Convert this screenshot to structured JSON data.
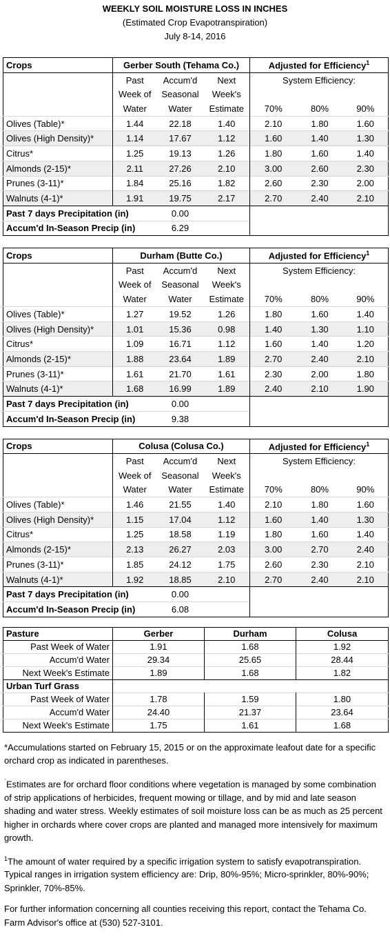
{
  "header": {
    "title": "WEEKLY SOIL MOISTURE LOSS IN INCHES",
    "subtitle": "(Estimated Crop Evapotranspiration)",
    "date": "July 8-14, 2016"
  },
  "tables": [
    {
      "crops_label": "Crops",
      "region": "Gerber South (Tehama Co.)",
      "adjusted_label": "Adjusted for Efficiency",
      "footnote_mark": "1",
      "efficiency_label": "System Efficiency:",
      "column_headers": [
        [
          "Past",
          "Week of",
          "Water"
        ],
        [
          "Accum'd",
          "Seasonal",
          "Water"
        ],
        [
          "Next",
          "Week's",
          "Estimate"
        ]
      ],
      "efficiency_columns": [
        "70%",
        "80%",
        "90%"
      ],
      "rows": [
        [
          "Olives (Table)*",
          "1.44",
          "22.18",
          "1.40",
          "2.10",
          "1.80",
          "1.60"
        ],
        [
          "Olives (High Density)*",
          "1.14",
          "17.67",
          "1.12",
          "1.60",
          "1.40",
          "1.30"
        ],
        [
          "Citrus*",
          "1.25",
          "19.13",
          "1.26",
          "1.80",
          "1.60",
          "1.40"
        ],
        [
          "Almonds (2-15)*",
          "2.11",
          "27.26",
          "2.10",
          "3.00",
          "2.60",
          "2.30"
        ],
        [
          "Prunes (3-11)*",
          "1.84",
          "25.16",
          "1.82",
          "2.60",
          "2.30",
          "2.00"
        ],
        [
          "Walnuts (4-1)*",
          "1.91",
          "19.75",
          "2.17",
          "2.70",
          "2.40",
          "2.10"
        ]
      ],
      "precip": [
        [
          "Past 7 days Precipitation (in)",
          "0.00"
        ],
        [
          "Accum'd In-Season Precip (in)",
          "6.29"
        ]
      ]
    },
    {
      "crops_label": "Crops",
      "region": "Durham (Butte Co.)",
      "adjusted_label": "Adjusted for Efficiency",
      "footnote_mark": "1",
      "efficiency_label": "System Efficiency:",
      "column_headers": [
        [
          "Past",
          "Week of",
          "Water"
        ],
        [
          "Accum'd",
          "Seasonal",
          "Water"
        ],
        [
          "Next",
          "Week's",
          "Estimate"
        ]
      ],
      "efficiency_columns": [
        "70%",
        "80%",
        "90%"
      ],
      "rows": [
        [
          "Olives (Table)*",
          "1.27",
          "19.52",
          "1.26",
          "1.80",
          "1.60",
          "1.40"
        ],
        [
          "Olives (High Density)*",
          "1.01",
          "15.36",
          "0.98",
          "1.40",
          "1.30",
          "1.10"
        ],
        [
          "Citrus*",
          "1.09",
          "16.71",
          "1.12",
          "1.60",
          "1.40",
          "1.20"
        ],
        [
          "Almonds (2-15)*",
          "1.88",
          "23.64",
          "1.89",
          "2.70",
          "2.40",
          "2.10"
        ],
        [
          "Prunes (3-11)*",
          "1.61",
          "21.70",
          "1.61",
          "2.30",
          "2.00",
          "1.80"
        ],
        [
          "Walnuts (4-1)*",
          "1.68",
          "16.99",
          "1.89",
          "2.40",
          "2.10",
          "1.90"
        ]
      ],
      "precip": [
        [
          "Past 7 days Precipitation (in)",
          "0.00"
        ],
        [
          "Accum'd In-Season Precip (in)",
          "9.38"
        ]
      ]
    },
    {
      "crops_label": "Crops",
      "region": "Colusa (Colusa Co.)",
      "adjusted_label": "Adjusted for Efficiency",
      "footnote_mark": "1",
      "efficiency_label": "System Efficiency:",
      "column_headers": [
        [
          "Past",
          "Week of",
          "Water"
        ],
        [
          "Accum'd",
          "Seasonal",
          "Water"
        ],
        [
          "Next",
          "Week's",
          "Estimate"
        ]
      ],
      "efficiency_columns": [
        "70%",
        "80%",
        "90%"
      ],
      "rows": [
        [
          "Olives (Table)*",
          "1.46",
          "21.55",
          "1.40",
          "2.10",
          "1.80",
          "1.60"
        ],
        [
          "Olives (High Density)*",
          "1.15",
          "17.04",
          "1.12",
          "1.60",
          "1.40",
          "1.30"
        ],
        [
          "Citrus*",
          "1.25",
          "18.58",
          "1.19",
          "1.80",
          "1.60",
          "1.40"
        ],
        [
          "Almonds (2-15)*",
          "2.13",
          "26.27",
          "2.03",
          "3.00",
          "2.70",
          "2.40"
        ],
        [
          "Prunes (3-11)*",
          "1.85",
          "24.12",
          "1.75",
          "2.60",
          "2.30",
          "2.10"
        ],
        [
          "Walnuts (4-1)*",
          "1.92",
          "18.85",
          "2.10",
          "2.70",
          "2.40",
          "2.10"
        ]
      ],
      "precip": [
        [
          "Past 7 days Precipitation (in)",
          "0.00"
        ],
        [
          "Accum'd In-Season Precip (in)",
          "6.08"
        ]
      ]
    }
  ],
  "pasture": {
    "label": "Pasture",
    "locations": [
      "Gerber",
      "Durham",
      "Colusa"
    ],
    "rows": [
      [
        "Past Week of Water",
        "1.91",
        "1.68",
        "1.92"
      ],
      [
        "Accum'd Water",
        "29.34",
        "25.65",
        "28.44"
      ],
      [
        "Next Week's Estimate",
        "1.89",
        "1.68",
        "1.82"
      ]
    ],
    "turf_label": "Urban Turf Grass",
    "turf_rows": [
      [
        "Past Week of Water",
        "1.78",
        "1.59",
        "1.80"
      ],
      [
        "Accum'd Water",
        "24.40",
        "21.37",
        "23.64"
      ],
      [
        "Next Week's Estimate",
        "1.75",
        "1.61",
        "1.68"
      ]
    ]
  },
  "notes": [
    {
      "text": "*Accumulations started on February 15, 2015 or on the approximate leafout date for a specific orchard crop as indicated in parentheses."
    },
    {
      "mark": "ˊ",
      "text": "Estimates are for orchard floor conditions where vegetation is managed by some combination of strip applications of herbicides, frequent mowing or tillage, and by mid and late season shading and water stress.  Weekly estimates of soil moisture loss can be as much as 25 percent higher in orchards where cover crops are planted and managed more intensively for maximum growth."
    },
    {
      "mark": "1",
      "text": "The amount of water required by a specific irrigation system to satisfy evapotranspiration. Typical ranges in irrigation system efficiency are: Drip, 80%-95%; Micro-sprinkler, 80%-90%; Sprinkler, 70%-85%."
    },
    {
      "text": "For further information concerning all counties receiving this report, contact the Tehama Co. Farm Advisor's office at (530) 527-3101."
    }
  ]
}
